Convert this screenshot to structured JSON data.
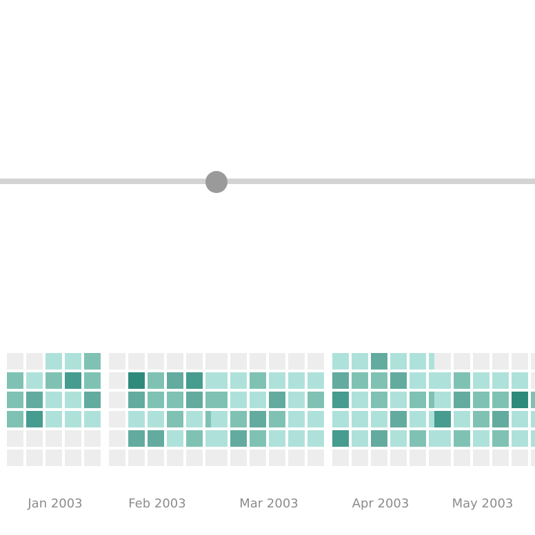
{
  "slider": {
    "value": 0.405
  },
  "chart_data": {
    "type": "heatmap",
    "layout": "calendar, weekday rows (Sun-Sat) by week columns",
    "scale": {
      "empty": "#ededed",
      "levels": [
        "#afe1db",
        "#7fc2b4",
        "#63ab9f",
        "#459c8f",
        "#2f8a7c"
      ]
    },
    "months": [
      {
        "label": "Jan 2003",
        "weeks": [
          [
            -1,
            -1,
            0,
            0,
            1
          ],
          [
            1,
            0,
            1,
            3,
            1
          ],
          [
            1,
            2,
            0,
            0,
            2
          ],
          [
            1,
            3,
            0,
            0,
            0
          ],
          [
            -1,
            -1,
            -1,
            -1,
            -1
          ],
          [
            -1,
            -1,
            -1,
            -1,
            -1
          ]
        ]
      },
      {
        "label": "Feb 2003",
        "weeks": [
          [
            -1,
            -1,
            -1,
            -1,
            -1,
            -1
          ],
          [
            -1,
            4,
            1,
            2,
            3,
            0
          ],
          [
            -1,
            2,
            1,
            1,
            2,
            1
          ],
          [
            -1,
            0,
            0,
            1,
            0,
            1
          ],
          [
            -1,
            2,
            2,
            0,
            1,
            0
          ],
          [
            -1,
            -1,
            -1,
            -1,
            -1,
            -1
          ]
        ]
      },
      {
        "label": "Mar 2003",
        "weeks": [
          [
            -1,
            -1,
            -1,
            -1,
            -1,
            -1
          ],
          [
            0,
            0,
            1,
            0,
            0,
            0
          ],
          [
            1,
            0,
            0,
            2,
            0,
            1
          ],
          [
            0,
            1,
            2,
            1,
            0,
            0
          ],
          [
            0,
            2,
            1,
            0,
            0,
            0
          ],
          [
            -1,
            -1,
            -1,
            -1,
            -1,
            -1
          ]
        ]
      },
      {
        "label": "Apr 2003",
        "weeks": [
          [
            0,
            0,
            2,
            0,
            0,
            0
          ],
          [
            2,
            1,
            1,
            2,
            0,
            0
          ],
          [
            3,
            0,
            1,
            0,
            1,
            1
          ],
          [
            0,
            0,
            0,
            2,
            0,
            0
          ],
          [
            3,
            0,
            2,
            0,
            1,
            0
          ],
          [
            -1,
            -1,
            -1,
            -1,
            -1,
            -1
          ]
        ]
      },
      {
        "label": "May 2003",
        "weeks": [
          [
            -1,
            -1,
            -1,
            -1,
            -1,
            -1
          ],
          [
            0,
            1,
            0,
            0,
            0,
            -1
          ],
          [
            0,
            2,
            1,
            1,
            4,
            1
          ],
          [
            3,
            0,
            1,
            2,
            0,
            0
          ],
          [
            0,
            1,
            0,
            1,
            0,
            0
          ],
          [
            -1,
            -1,
            -1,
            -1,
            -1,
            -1
          ]
        ]
      }
    ]
  }
}
